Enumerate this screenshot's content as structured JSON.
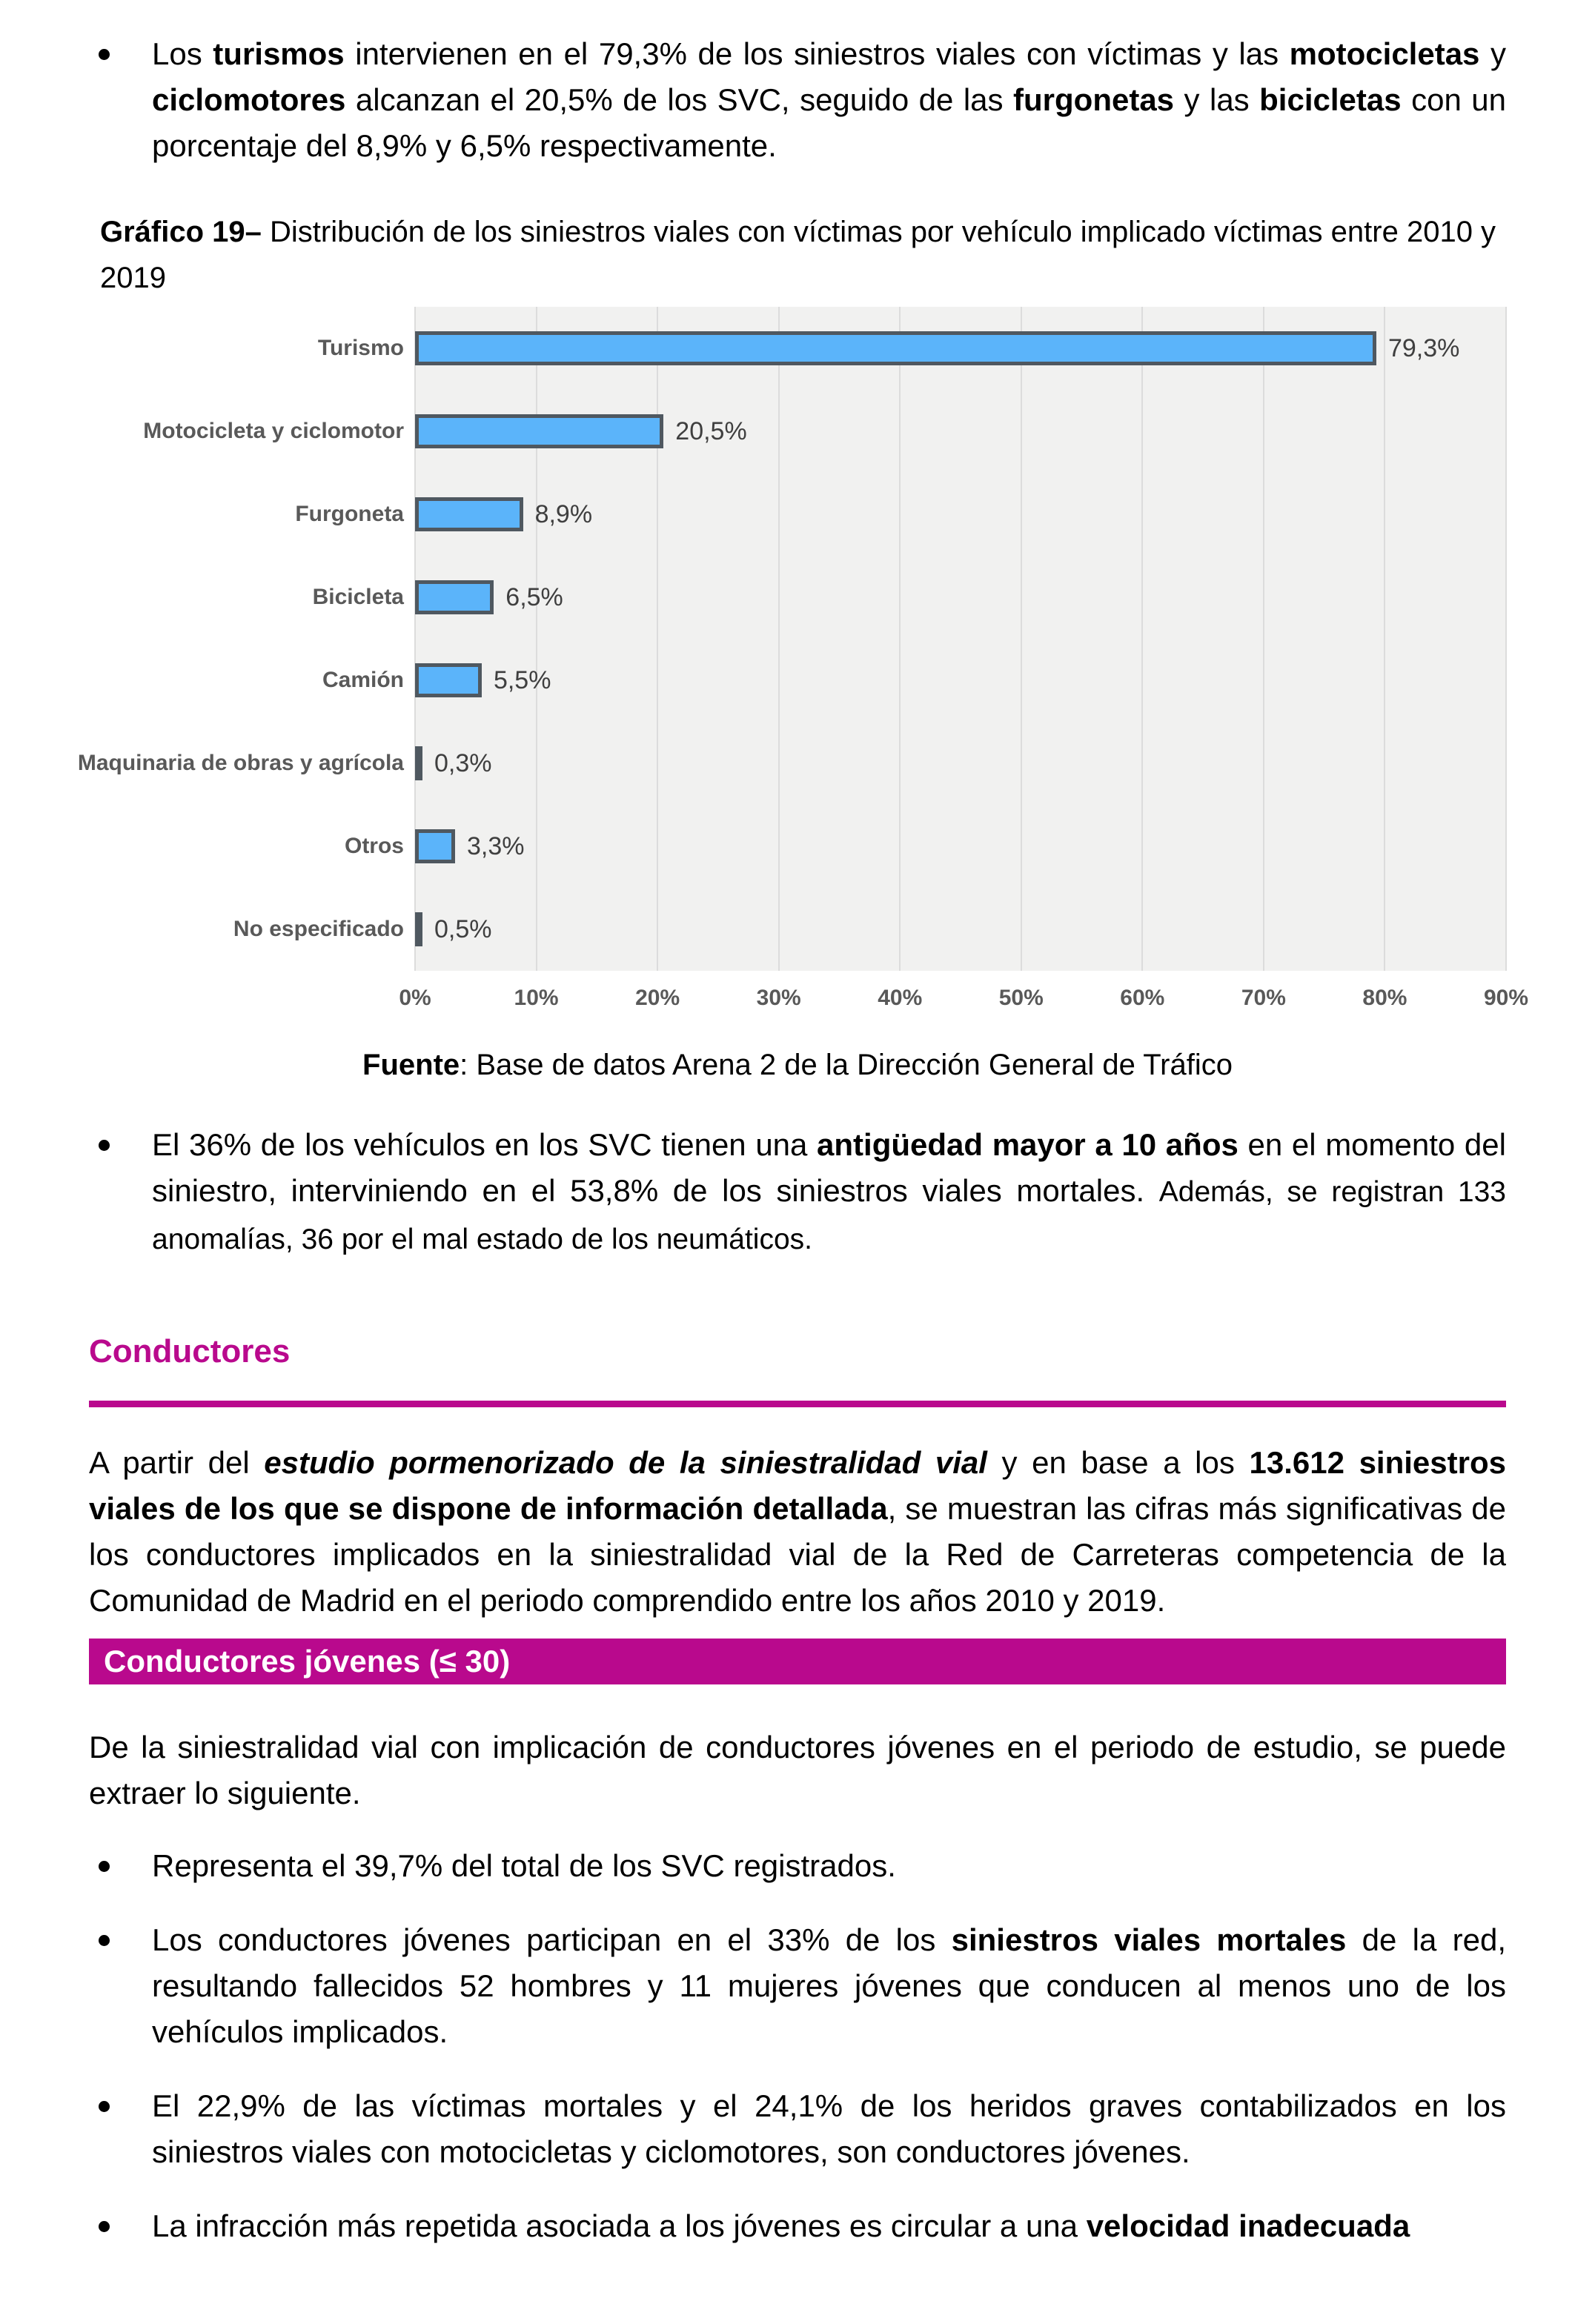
{
  "colors": {
    "accent_magenta": "#B9098D",
    "bar_fill": "#5BB4FA",
    "bar_border": "#4F5860",
    "plot_background": "#F1F1F0",
    "gridline": "#DCDCDC",
    "chart_text": "#595959"
  },
  "bullet1": [
    {
      "t": "Los "
    },
    {
      "t": "turismos",
      "b": 1
    },
    {
      "t": " intervienen en el 79,3% de los siniestros viales con víctimas y las "
    },
    {
      "t": "motocicletas",
      "b": 1
    },
    {
      "t": " y "
    },
    {
      "t": "ciclomotores",
      "b": 1
    },
    {
      "t": " alcanzan el 20,5% de los SVC, seguido de las "
    },
    {
      "t": "furgonetas",
      "b": 1
    },
    {
      "t": " y las "
    },
    {
      "t": "bicicletas",
      "b": 1
    },
    {
      "t": " con un porcentaje del 8,9% y 6,5% respectivamente."
    }
  ],
  "chart_title": [
    {
      "t": "Gráfico 19–",
      "b": 1
    },
    {
      "t": " Distribución de los siniestros viales con víctimas por vehículo implicado víctimas entre 2010 y 2019"
    }
  ],
  "chart_data": {
    "type": "bar",
    "orientation": "horizontal",
    "title": "Gráfico 19– Distribución de los siniestros viales con víctimas por vehículo implicado víctimas entre 2010 y 2019",
    "categories": [
      "Turismo",
      "Motocicleta y ciclomotor",
      "Furgoneta",
      "Bicicleta",
      "Camión",
      "Maquinaria de obras y agrícola",
      "Otros",
      "No especificado"
    ],
    "values": [
      79.3,
      20.5,
      8.9,
      6.5,
      5.5,
      0.3,
      3.3,
      0.5
    ],
    "value_labels": [
      "79,3%",
      "20,5%",
      "8,9%",
      "6,5%",
      "5,5%",
      "0,3%",
      "3,3%",
      "0,5%"
    ],
    "x_ticks": [
      "0%",
      "10%",
      "20%",
      "30%",
      "40%",
      "50%",
      "60%",
      "70%",
      "80%",
      "90%"
    ],
    "xlim": [
      0,
      90
    ],
    "grid": true,
    "legend": false
  },
  "fuente": [
    {
      "t": "Fuente",
      "b": 1
    },
    {
      "t": ": Base de datos Arena 2 de la Dirección General de Tráfico"
    }
  ],
  "bullet2": [
    {
      "t": "El 36% de los vehículos en los SVC tienen una "
    },
    {
      "t": "antigüedad mayor a 10 años",
      "b": 1
    },
    {
      "t": " en el momento del siniestro, interviniendo en el 53,8% de los siniestros viales mortales. "
    },
    {
      "t": "Además, se registran 133 anomalías, 36 por el mal estado de los neumáticos.",
      "sm": 1
    }
  ],
  "conductores_heading": "Conductores",
  "para1": [
    {
      "t": "A partir del "
    },
    {
      "t": "estudio pormenorizado de la siniestralidad vial",
      "b": 1,
      "i": 1
    },
    {
      "t": " y en base a los "
    },
    {
      "t": "13.612 siniestros viales de los que se dispone de información detallada",
      "b": 1
    },
    {
      "t": ", se muestran las cifras más significativas de los conductores implicados en la siniestralidad vial de la Red de Carreteras competencia de la Comunidad de Madrid en el periodo comprendido entre los años 2010 y 2019."
    }
  ],
  "banner_jovenes": "Conductores jóvenes (≤ 30)",
  "para2": [
    {
      "t": "De la siniestralidad vial con implicación de conductores jóvenes en el periodo de estudio, se puede extraer lo siguiente."
    }
  ],
  "jovenes_bullets": {
    "b1": [
      {
        "t": "Representa el 39,7% del total de los SVC registrados."
      }
    ],
    "b2": [
      {
        "t": "Los conductores jóvenes participan en el 33% de los "
      },
      {
        "t": "siniestros viales mortales",
        "b": 1
      },
      {
        "t": " de la red, resultando fallecidos 52 hombres y 11 mujeres jóvenes que conducen al menos uno de los vehículos implicados."
      }
    ],
    "b3": [
      {
        "t": "El 22,9% de las víctimas mortales y el 24,1% de los heridos graves contabilizados en los siniestros viales con motocicletas y ciclomotores, son conductores jóvenes."
      }
    ],
    "b4": [
      {
        "t": "La infracción más repetida asociada a los jóvenes es circular a una "
      },
      {
        "t": "velocidad inadecuada",
        "b": 1
      }
    ]
  }
}
